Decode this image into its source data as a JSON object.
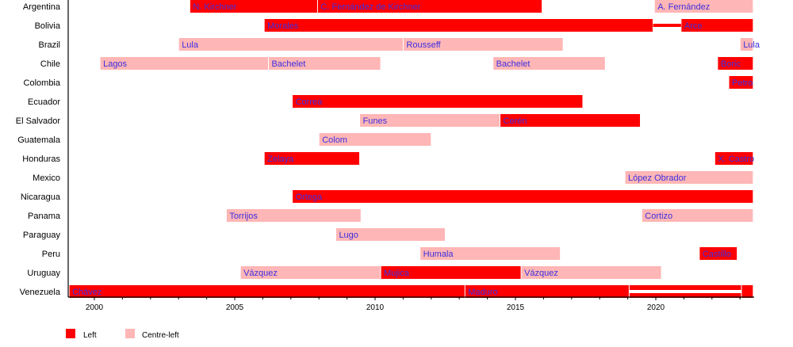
{
  "chart_data": {
    "type": "timeline",
    "title": "",
    "xlabel": "",
    "ylabel": "",
    "xlim": [
      1999.1,
      2023.47
    ],
    "x_ticks": [
      2000,
      2005,
      2010,
      2015,
      2020
    ],
    "colors": {
      "Left": "#ff0000",
      "Centre-left": "#ffb6b6",
      "label": "#3a2ee0"
    },
    "legend": {
      "placement": "bottom-left",
      "entries": [
        "Left",
        "Centre-left"
      ]
    },
    "countries": [
      {
        "name": "Argentina",
        "terms": [
          {
            "label": "N. Kirchner",
            "start": 2003.4,
            "end": 2007.95,
            "group": "Left"
          },
          {
            "label": "C. Fernández de Kirchner",
            "start": 2007.95,
            "end": 2015.95,
            "group": "Left"
          },
          {
            "label": "A. Fernández",
            "start": 2019.95,
            "end": 2023.47,
            "group": "Centre-left"
          }
        ]
      },
      {
        "name": "Bolivia",
        "terms": [
          {
            "label": "Morales",
            "start": 2006.05,
            "end": 2019.9,
            "group": "Left"
          },
          {
            "label": "",
            "start": 2019.9,
            "end": 2020.9,
            "group": "Left",
            "thin": true
          },
          {
            "label": "Arce",
            "start": 2020.9,
            "end": 2023.47,
            "group": "Left"
          }
        ]
      },
      {
        "name": "Brazil",
        "terms": [
          {
            "label": "Lula",
            "start": 2003.0,
            "end": 2011.0,
            "group": "Centre-left"
          },
          {
            "label": "Rousseff",
            "start": 2011.0,
            "end": 2016.7,
            "group": "Centre-left"
          },
          {
            "label": "Lula",
            "start": 2023.0,
            "end": 2023.47,
            "group": "Centre-left"
          }
        ]
      },
      {
        "name": "Chile",
        "terms": [
          {
            "label": "Lagos",
            "start": 2000.2,
            "end": 2006.2,
            "group": "Centre-left"
          },
          {
            "label": "Bachelet",
            "start": 2006.2,
            "end": 2010.2,
            "group": "Centre-left"
          },
          {
            "label": "Bachelet",
            "start": 2014.2,
            "end": 2018.2,
            "group": "Centre-left"
          },
          {
            "label": "Boric",
            "start": 2022.2,
            "end": 2023.47,
            "group": "Left"
          }
        ]
      },
      {
        "name": "Colombia",
        "terms": [
          {
            "label": "Petro",
            "start": 2022.6,
            "end": 2023.47,
            "group": "Left"
          }
        ]
      },
      {
        "name": "Ecuador",
        "terms": [
          {
            "label": "Correa",
            "start": 2007.05,
            "end": 2017.4,
            "group": "Left"
          }
        ]
      },
      {
        "name": "El Salvador",
        "terms": [
          {
            "label": "Funes",
            "start": 2009.45,
            "end": 2014.45,
            "group": "Centre-left"
          },
          {
            "label": "Cerén",
            "start": 2014.45,
            "end": 2019.45,
            "group": "Left"
          }
        ]
      },
      {
        "name": "Guatemala",
        "terms": [
          {
            "label": "Colom",
            "start": 2008.0,
            "end": 2012.0,
            "group": "Centre-left"
          }
        ]
      },
      {
        "name": "Honduras",
        "terms": [
          {
            "label": "Zelaya",
            "start": 2006.05,
            "end": 2009.45,
            "group": "Left"
          },
          {
            "label": "X. Castro",
            "start": 2022.1,
            "end": 2023.47,
            "group": "Left"
          }
        ]
      },
      {
        "name": "Mexico",
        "terms": [
          {
            "label": "López Obrador",
            "start": 2018.9,
            "end": 2023.47,
            "group": "Centre-left"
          }
        ]
      },
      {
        "name": "Nicaragua",
        "terms": [
          {
            "label": "Ortega",
            "start": 2007.05,
            "end": 2023.47,
            "group": "Left"
          }
        ]
      },
      {
        "name": "Panama",
        "terms": [
          {
            "label": "Torrijos",
            "start": 2004.7,
            "end": 2009.5,
            "group": "Centre-left"
          },
          {
            "label": "Cortizo",
            "start": 2019.5,
            "end": 2023.47,
            "group": "Centre-left"
          }
        ]
      },
      {
        "name": "Paraguay",
        "terms": [
          {
            "label": "Lugo",
            "start": 2008.6,
            "end": 2012.5,
            "group": "Centre-left"
          }
        ]
      },
      {
        "name": "Peru",
        "terms": [
          {
            "label": "Humala",
            "start": 2011.6,
            "end": 2016.6,
            "group": "Centre-left"
          },
          {
            "label": "Castillo",
            "start": 2021.55,
            "end": 2022.9,
            "group": "Left"
          }
        ]
      },
      {
        "name": "Uruguay",
        "terms": [
          {
            "label": "Vázquez",
            "start": 2005.2,
            "end": 2010.2,
            "group": "Centre-left"
          },
          {
            "label": "Mujica",
            "start": 2010.2,
            "end": 2015.2,
            "group": "Left"
          },
          {
            "label": "Vázquez",
            "start": 2015.2,
            "end": 2020.2,
            "group": "Centre-left"
          }
        ]
      },
      {
        "name": "Venezuela",
        "terms": [
          {
            "label": "Chávez",
            "start": 1999.1,
            "end": 2013.2,
            "group": "Left"
          },
          {
            "label": "Maduro",
            "start": 2013.2,
            "end": 2019.05,
            "group": "Left"
          },
          {
            "label": "",
            "start": 2019.05,
            "end": 2023.05,
            "group": "Left",
            "split": true
          },
          {
            "label": "",
            "start": 2023.05,
            "end": 2023.47,
            "group": "Left"
          }
        ]
      }
    ]
  }
}
